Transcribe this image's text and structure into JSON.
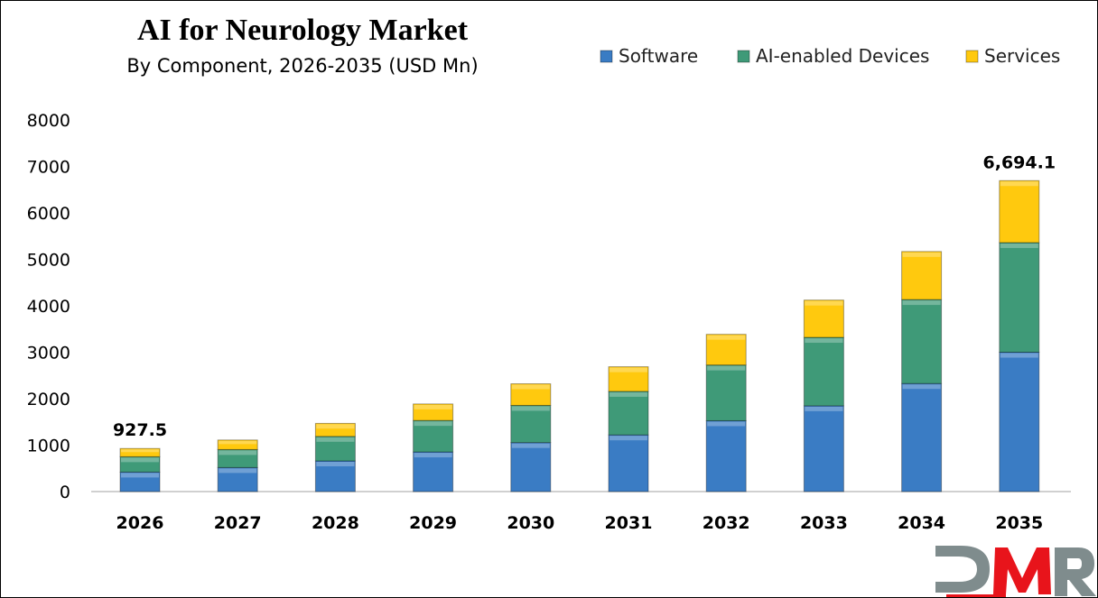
{
  "chart_data": {
    "type": "bar",
    "stacked": true,
    "title": "AI for Neurology Market",
    "subtitle": "By Component, 2026-2035 (USD Mn)",
    "xlabel": "",
    "ylabel": "",
    "ylim": [
      0,
      8000
    ],
    "yticks": [
      0,
      1000,
      2000,
      3000,
      4000,
      5000,
      6000,
      7000,
      8000
    ],
    "grid": false,
    "legend_position": "top-right",
    "categories": [
      "2026",
      "2027",
      "2028",
      "2029",
      "2030",
      "2031",
      "2032",
      "2033",
      "2034",
      "2035"
    ],
    "series": [
      {
        "name": "Software",
        "color": "#3A7CC4",
        "values": [
          420,
          517,
          660,
          853,
          1055,
          1220,
          1525,
          1847,
          2326,
          3000
        ]
      },
      {
        "name": "AI-enabled Devices",
        "color": "#3F9A78",
        "values": [
          330,
          388,
          528,
          678,
          800,
          937,
          1200,
          1473,
          1808,
          2360
        ]
      },
      {
        "name": "Services",
        "color": "#FFC90E",
        "values": [
          177.5,
          205,
          280,
          355,
          465,
          530,
          660,
          802,
          1034,
          1334.1
        ]
      }
    ],
    "data_labels": [
      {
        "category": "2026",
        "text": "927.5"
      },
      {
        "category": "2035",
        "text": "6,694.1"
      }
    ]
  },
  "logo": {
    "text": "DMR",
    "colors": [
      "#7F8C8D",
      "#E8141B",
      "#7F8C8D"
    ]
  }
}
